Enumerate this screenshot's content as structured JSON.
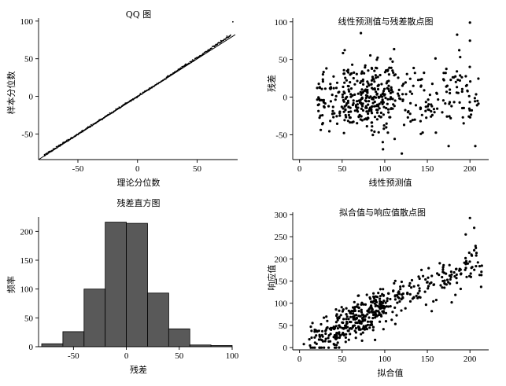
{
  "chart_data": [
    {
      "type": "scatter",
      "title": "QQ 图",
      "xlabel": "理论分位数",
      "ylabel": "样本分位数",
      "xlim": [
        -83,
        84
      ],
      "ylim": [
        -84,
        104
      ],
      "xticks": [
        -50,
        0,
        50
      ],
      "yticks": [
        -50,
        0,
        50,
        100
      ],
      "reference_line": {
        "from": [
          -83,
          -84
        ],
        "to": [
          82,
          82
        ]
      },
      "points": {
        "x": [
          -78,
          -72,
          -65,
          -58,
          -52,
          -46,
          -40,
          -35,
          -30,
          -25,
          -20,
          -15,
          -10,
          -5,
          0,
          5,
          10,
          15,
          20,
          25,
          30,
          35,
          40,
          45,
          50,
          55,
          60,
          65,
          70,
          75,
          80
        ],
        "y": [
          -79,
          -73,
          -66,
          -59,
          -53,
          -47,
          -41,
          -36,
          -30,
          -25,
          -20,
          -15,
          -10,
          -5,
          0,
          5,
          10,
          15,
          20,
          26,
          31,
          36,
          41,
          46,
          51,
          56,
          61,
          67,
          74,
          80,
          99
        ]
      }
    },
    {
      "type": "scatter",
      "title": "线性预测值与残差散点图",
      "xlabel": "线性预测值",
      "ylabel": "残差",
      "xlim": [
        -8,
        222
      ],
      "ylim": [
        -83,
        105
      ],
      "xticks": [
        0,
        50,
        100,
        150,
        200
      ],
      "yticks": [
        -50,
        0,
        50,
        100
      ]
    },
    {
      "type": "bar",
      "title": "残差直方图",
      "xlabel": "残差",
      "ylabel": "频率",
      "bin_edges": [
        -80,
        -60,
        -40,
        -20,
        0,
        20,
        40,
        60,
        80,
        100
      ],
      "values": [
        5,
        26,
        100,
        216,
        214,
        93,
        31,
        3,
        2
      ],
      "xlim": [
        -83,
        100
      ],
      "ylim": [
        0,
        225
      ],
      "xticks": [
        -50,
        0,
        50,
        100
      ],
      "yticks": [
        0,
        50,
        100,
        150,
        200
      ],
      "color": "#595959"
    },
    {
      "type": "scatter",
      "title": "拟合值与响应值散点图",
      "xlabel": "拟合值",
      "ylabel": "响应值",
      "xlim": [
        -8,
        222
      ],
      "ylim": [
        -5,
        305
      ],
      "xticks": [
        0,
        50,
        100,
        150,
        200
      ],
      "yticks": [
        0,
        50,
        100,
        150,
        200,
        250,
        300
      ]
    }
  ]
}
